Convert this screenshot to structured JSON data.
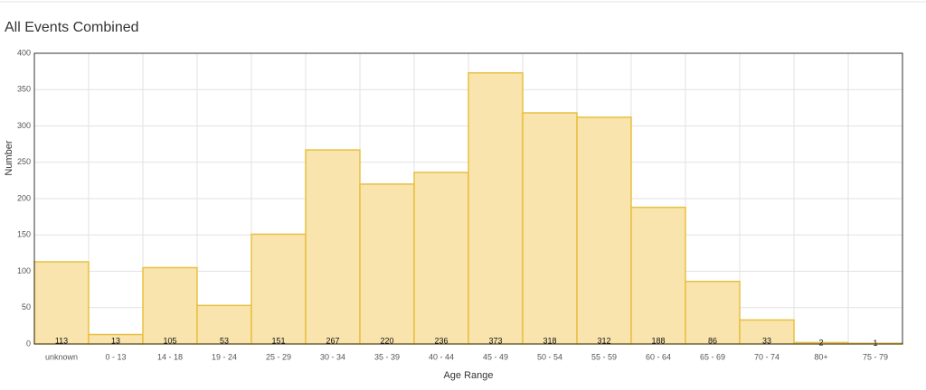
{
  "chart_data": {
    "type": "bar",
    "title": "All Events Combined",
    "x_label": "Age Range",
    "y_label": "Number",
    "categories": [
      "unknown",
      "0 - 13",
      "14 - 18",
      "19 - 24",
      "25 - 29",
      "30 - 34",
      "35 - 39",
      "40 - 44",
      "45 - 49",
      "50 - 54",
      "55 - 59",
      "60 - 64",
      "65 - 69",
      "70 - 74",
      "80+",
      "75 - 79"
    ],
    "values": [
      113,
      13,
      105,
      53,
      151,
      267,
      220,
      236,
      373,
      318,
      312,
      188,
      86,
      33,
      2,
      1
    ],
    "color": "#f8e4ac",
    "edge_color": "#e8c040",
    "ylim": [
      0,
      400
    ],
    "yticks": [
      0,
      50,
      100,
      150,
      200,
      250,
      300,
      350,
      400
    ],
    "grid": true
  }
}
